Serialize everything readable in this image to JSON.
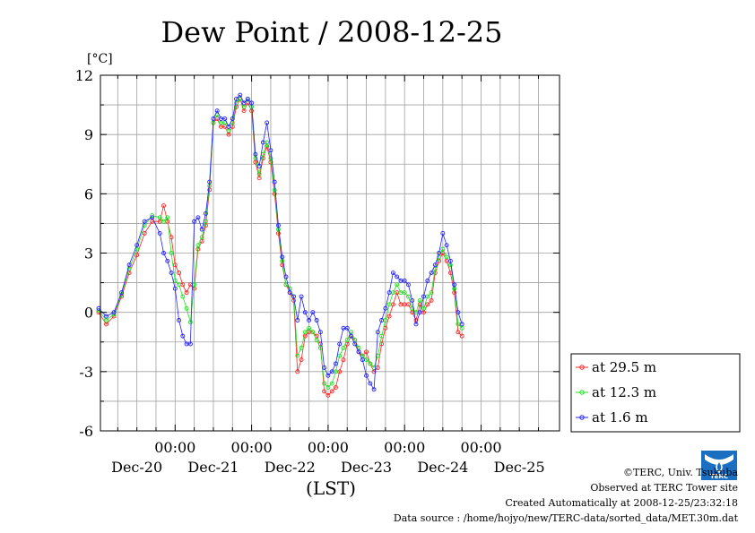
{
  "title": "Dew Point / 2008-12-25",
  "colors": {
    "s1": "#ff2020",
    "s2": "#20e020",
    "s3": "#2020ff"
  },
  "chart_data": {
    "type": "line",
    "title": "Dew Point / 2008-12-25",
    "ylabel": "[°C]",
    "xlabel": "(LST)",
    "ylim": [
      -6,
      12
    ],
    "yticks": [
      "12",
      "9",
      "6",
      "3",
      "0",
      "-3",
      "-6"
    ],
    "xlim": [
      0,
      6
    ],
    "x_ticks_top": [
      "00:00",
      "00:00",
      "00:00",
      "00:00",
      "00:00"
    ],
    "x_ticks_bottom": [
      "Dec-20",
      "Dec-21",
      "Dec-22",
      "Dec-23",
      "Dec-24",
      "Dec-25"
    ],
    "grid": true,
    "legend_position": "right",
    "series": [
      {
        "name": "at 29.5 m",
        "color": "#ff2020",
        "values": [
          [
            0.0,
            0.0
          ],
          [
            0.1,
            -0.6
          ],
          [
            0.2,
            -0.2
          ],
          [
            0.3,
            0.8
          ],
          [
            0.4,
            2.0
          ],
          [
            0.5,
            2.9
          ],
          [
            0.6,
            4.0
          ],
          [
            0.7,
            4.6
          ],
          [
            0.8,
            4.6
          ],
          [
            0.85,
            5.4
          ],
          [
            0.9,
            4.6
          ],
          [
            0.95,
            3.8
          ],
          [
            1.0,
            2.4
          ],
          [
            1.05,
            2.0
          ],
          [
            1.1,
            1.4
          ],
          [
            1.15,
            1.0
          ],
          [
            1.2,
            1.4
          ],
          [
            1.25,
            1.2
          ],
          [
            1.3,
            3.2
          ],
          [
            1.35,
            3.6
          ],
          [
            1.4,
            4.4
          ],
          [
            1.45,
            6.2
          ],
          [
            1.5,
            9.6
          ],
          [
            1.55,
            9.8
          ],
          [
            1.6,
            9.4
          ],
          [
            1.65,
            9.4
          ],
          [
            1.7,
            9.0
          ],
          [
            1.75,
            9.4
          ],
          [
            1.8,
            10.4
          ],
          [
            1.85,
            10.8
          ],
          [
            1.9,
            10.2
          ],
          [
            1.95,
            10.6
          ],
          [
            2.0,
            10.2
          ],
          [
            2.05,
            7.6
          ],
          [
            2.1,
            6.8
          ],
          [
            2.15,
            7.8
          ],
          [
            2.2,
            8.4
          ],
          [
            2.25,
            7.6
          ],
          [
            2.3,
            6.0
          ],
          [
            2.35,
            4.0
          ],
          [
            2.4,
            2.4
          ],
          [
            2.45,
            1.4
          ],
          [
            2.5,
            1.0
          ],
          [
            2.55,
            0.6
          ],
          [
            2.6,
            -3.0
          ],
          [
            2.65,
            -2.4
          ],
          [
            2.7,
            -1.2
          ],
          [
            2.75,
            -1.0
          ],
          [
            2.8,
            -1.0
          ],
          [
            2.85,
            -1.2
          ],
          [
            2.9,
            -1.6
          ],
          [
            2.95,
            -4.0
          ],
          [
            3.0,
            -4.2
          ],
          [
            3.05,
            -4.0
          ],
          [
            3.1,
            -3.8
          ],
          [
            3.15,
            -3.0
          ],
          [
            3.2,
            -2.4
          ],
          [
            3.25,
            -1.6
          ],
          [
            3.3,
            -1.2
          ],
          [
            3.35,
            -1.4
          ],
          [
            3.4,
            -2.0
          ],
          [
            3.45,
            -2.2
          ],
          [
            3.5,
            -2.0
          ],
          [
            3.55,
            -2.6
          ],
          [
            3.6,
            -3.0
          ],
          [
            3.65,
            -2.8
          ],
          [
            3.7,
            -1.6
          ],
          [
            3.75,
            -0.8
          ],
          [
            3.8,
            -0.2
          ],
          [
            3.85,
            0.4
          ],
          [
            3.9,
            1.0
          ],
          [
            3.95,
            0.4
          ],
          [
            4.0,
            0.4
          ],
          [
            4.05,
            0.4
          ],
          [
            4.1,
            0.0
          ],
          [
            4.15,
            -0.4
          ],
          [
            4.2,
            0.4
          ],
          [
            4.25,
            0.0
          ],
          [
            4.3,
            0.4
          ],
          [
            4.35,
            0.6
          ],
          [
            4.4,
            2.0
          ],
          [
            4.45,
            2.6
          ],
          [
            4.5,
            3.0
          ],
          [
            4.55,
            2.6
          ],
          [
            4.6,
            2.0
          ],
          [
            4.65,
            1.0
          ],
          [
            4.7,
            -1.0
          ],
          [
            4.75,
            -1.2
          ]
        ]
      },
      {
        "name": "at 12.3 m",
        "color": "#20e020",
        "values": [
          [
            0.0,
            0.1
          ],
          [
            0.1,
            -0.4
          ],
          [
            0.2,
            -0.1
          ],
          [
            0.3,
            0.9
          ],
          [
            0.4,
            2.2
          ],
          [
            0.5,
            3.2
          ],
          [
            0.6,
            4.4
          ],
          [
            0.7,
            4.9
          ],
          [
            0.8,
            4.8
          ],
          [
            0.85,
            4.6
          ],
          [
            0.9,
            4.8
          ],
          [
            0.95,
            3.0
          ],
          [
            1.0,
            1.6
          ],
          [
            1.05,
            1.4
          ],
          [
            1.1,
            0.8
          ],
          [
            1.15,
            0.2
          ],
          [
            1.2,
            -0.5
          ],
          [
            1.25,
            1.4
          ],
          [
            1.3,
            3.4
          ],
          [
            1.35,
            3.8
          ],
          [
            1.4,
            4.6
          ],
          [
            1.45,
            6.4
          ],
          [
            1.5,
            9.6
          ],
          [
            1.55,
            10.0
          ],
          [
            1.6,
            9.6
          ],
          [
            1.65,
            9.6
          ],
          [
            1.7,
            9.2
          ],
          [
            1.75,
            9.6
          ],
          [
            1.8,
            10.6
          ],
          [
            1.85,
            10.8
          ],
          [
            1.9,
            10.4
          ],
          [
            1.95,
            10.8
          ],
          [
            2.0,
            10.4
          ],
          [
            2.05,
            7.8
          ],
          [
            2.1,
            7.0
          ],
          [
            2.15,
            8.0
          ],
          [
            2.2,
            8.6
          ],
          [
            2.25,
            7.8
          ],
          [
            2.3,
            6.2
          ],
          [
            2.35,
            4.2
          ],
          [
            2.4,
            2.6
          ],
          [
            2.45,
            1.4
          ],
          [
            2.5,
            1.2
          ],
          [
            2.55,
            0.8
          ],
          [
            2.6,
            -2.2
          ],
          [
            2.65,
            -1.8
          ],
          [
            2.7,
            -1.0
          ],
          [
            2.75,
            -0.8
          ],
          [
            2.8,
            -1.0
          ],
          [
            2.85,
            -1.4
          ],
          [
            2.9,
            -1.8
          ],
          [
            2.95,
            -3.6
          ],
          [
            3.0,
            -3.8
          ],
          [
            3.05,
            -3.6
          ],
          [
            3.1,
            -3.0
          ],
          [
            3.15,
            -2.2
          ],
          [
            3.2,
            -1.8
          ],
          [
            3.25,
            -1.4
          ],
          [
            3.3,
            -1.0
          ],
          [
            3.35,
            -1.4
          ],
          [
            3.4,
            -1.8
          ],
          [
            3.45,
            -2.2
          ],
          [
            3.5,
            -2.4
          ],
          [
            3.55,
            -2.6
          ],
          [
            3.6,
            -2.8
          ],
          [
            3.65,
            -2.2
          ],
          [
            3.7,
            -1.2
          ],
          [
            3.75,
            -0.4
          ],
          [
            3.8,
            0.4
          ],
          [
            3.85,
            1.0
          ],
          [
            3.9,
            1.4
          ],
          [
            3.95,
            1.0
          ],
          [
            4.0,
            1.0
          ],
          [
            4.05,
            0.8
          ],
          [
            4.1,
            0.2
          ],
          [
            4.15,
            0.0
          ],
          [
            4.2,
            0.6
          ],
          [
            4.25,
            0.2
          ],
          [
            4.3,
            0.8
          ],
          [
            4.35,
            1.0
          ],
          [
            4.4,
            2.2
          ],
          [
            4.45,
            2.8
          ],
          [
            4.5,
            3.2
          ],
          [
            4.55,
            2.8
          ],
          [
            4.6,
            2.4
          ],
          [
            4.65,
            1.2
          ],
          [
            4.7,
            -0.6
          ],
          [
            4.75,
            -0.8
          ]
        ]
      },
      {
        "name": "at 1.6 m",
        "color": "#2020ff",
        "values": [
          [
            0.0,
            0.2
          ],
          [
            0.1,
            -0.2
          ],
          [
            0.2,
            0.0
          ],
          [
            0.3,
            1.0
          ],
          [
            0.4,
            2.4
          ],
          [
            0.5,
            3.4
          ],
          [
            0.6,
            4.6
          ],
          [
            0.7,
            4.8
          ],
          [
            0.8,
            4.0
          ],
          [
            0.85,
            3.0
          ],
          [
            0.9,
            2.6
          ],
          [
            0.95,
            2.0
          ],
          [
            1.0,
            1.2
          ],
          [
            1.05,
            -0.4
          ],
          [
            1.1,
            -1.2
          ],
          [
            1.15,
            -1.6
          ],
          [
            1.2,
            -1.6
          ],
          [
            1.25,
            4.6
          ],
          [
            1.3,
            4.8
          ],
          [
            1.35,
            4.2
          ],
          [
            1.4,
            5.0
          ],
          [
            1.45,
            6.6
          ],
          [
            1.5,
            9.8
          ],
          [
            1.55,
            10.2
          ],
          [
            1.6,
            9.8
          ],
          [
            1.65,
            9.8
          ],
          [
            1.7,
            9.4
          ],
          [
            1.75,
            9.8
          ],
          [
            1.8,
            10.8
          ],
          [
            1.85,
            11.0
          ],
          [
            1.9,
            10.6
          ],
          [
            1.95,
            10.8
          ],
          [
            2.0,
            10.6
          ],
          [
            2.05,
            8.0
          ],
          [
            2.1,
            7.4
          ],
          [
            2.15,
            8.6
          ],
          [
            2.2,
            9.6
          ],
          [
            2.25,
            8.2
          ],
          [
            2.3,
            6.6
          ],
          [
            2.35,
            4.4
          ],
          [
            2.4,
            2.8
          ],
          [
            2.45,
            1.8
          ],
          [
            2.5,
            1.0
          ],
          [
            2.55,
            0.8
          ],
          [
            2.6,
            -0.4
          ],
          [
            2.65,
            0.8
          ],
          [
            2.7,
            0.0
          ],
          [
            2.75,
            -0.4
          ],
          [
            2.8,
            0.0
          ],
          [
            2.85,
            -0.4
          ],
          [
            2.9,
            -1.0
          ],
          [
            2.95,
            -2.8
          ],
          [
            3.0,
            -3.2
          ],
          [
            3.05,
            -3.0
          ],
          [
            3.1,
            -2.6
          ],
          [
            3.15,
            -1.6
          ],
          [
            3.2,
            -0.8
          ],
          [
            3.25,
            -0.8
          ],
          [
            3.3,
            -1.2
          ],
          [
            3.35,
            -1.6
          ],
          [
            3.4,
            -2.0
          ],
          [
            3.45,
            -2.4
          ],
          [
            3.5,
            -3.2
          ],
          [
            3.55,
            -3.6
          ],
          [
            3.6,
            -3.9
          ],
          [
            3.65,
            -1.0
          ],
          [
            3.7,
            -0.4
          ],
          [
            3.75,
            0.2
          ],
          [
            3.8,
            1.0
          ],
          [
            3.85,
            2.0
          ],
          [
            3.9,
            1.8
          ],
          [
            3.95,
            1.6
          ],
          [
            4.0,
            1.6
          ],
          [
            4.05,
            1.4
          ],
          [
            4.1,
            0.6
          ],
          [
            4.15,
            -0.6
          ],
          [
            4.2,
            0.0
          ],
          [
            4.25,
            0.8
          ],
          [
            4.3,
            1.6
          ],
          [
            4.35,
            2.0
          ],
          [
            4.4,
            2.4
          ],
          [
            4.45,
            3.0
          ],
          [
            4.5,
            4.0
          ],
          [
            4.55,
            3.4
          ],
          [
            4.6,
            2.6
          ],
          [
            4.65,
            1.4
          ],
          [
            4.7,
            0.0
          ],
          [
            4.75,
            -0.6
          ]
        ]
      }
    ]
  },
  "credits": {
    "line1": "©TERC, Univ. Tsukuba",
    "line2": "Observed at TERC Tower site",
    "line3": "Created Automatically at 2008-12-25/23:32:18",
    "line4": "Data source : /home/hojyo/new/TERC-data/sorted_data/MET.30m.dat",
    "logo_text": "TERC"
  }
}
